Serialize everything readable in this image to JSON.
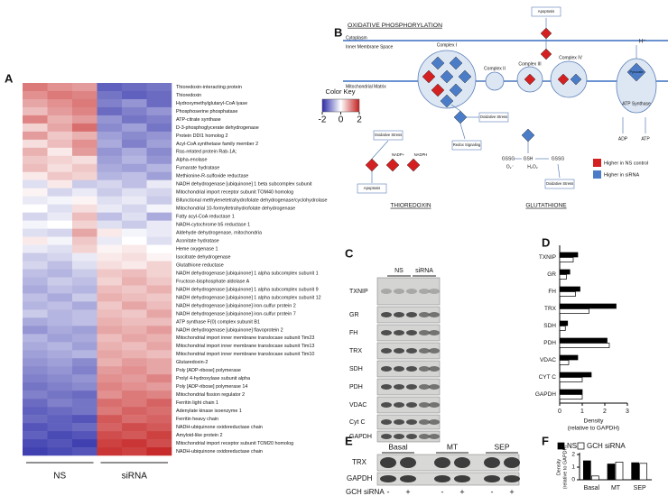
{
  "panel_labels": [
    "A",
    "B",
    "C",
    "D",
    "E",
    "F"
  ],
  "heatmap": {
    "title": "Color Key",
    "key_range": [
      -2,
      2
    ],
    "key_ticks": [
      -2,
      0,
      2
    ],
    "key_colors": [
      "#2b2ba8",
      "#ffffff",
      "#c42020"
    ],
    "groups": [
      "NS",
      "siRNA"
    ],
    "rows": [
      "Thioredoxin-interacting protein",
      "Thioredoxin",
      "Hydroxymethylglutaryl-CoA lyase",
      "Phosphoserine phosphatase",
      "ATP-citrate synthase",
      "D-3-phosphoglycerate dehydrogenase",
      "Protein DDI1 homolog 2",
      "Acyl-CoA synthetase family member 2",
      "Ras-related protein Rab-1A;",
      "Alpha-enolase",
      "Fumarate hydratase",
      "Methionine-R-sulfoxide reductase",
      "NADH dehydrogenase [ubiquinone] 1 beta subcomplex subunit",
      "Mitochondrial import receptor subunit TOM40 homolog",
      "Bifunctional methylenetetrahydrofolate dehydrogenase/cyclohydrolase",
      "Mitochondrial 10-formyltetrahydrofolate dehydrogenase",
      "Fatty acyl-CoA reductase 1",
      "NADH-cytochrome b5 reductase 1",
      "Aldehyde dehydrogenase, mitochondria",
      "Aconitate hydratase",
      "Heme oxygenase 1",
      "Isocitrate dehydrogenase",
      "Glutathione reductase",
      "NADH dehydrogenase [ubiquinone] 1 alpha subcomplex subunit 1",
      "Fructose-bisphosphate aldolase A",
      "NADH dehydrogenase [ubiquinone] 1 alpha subcomplex subunit 9",
      "NADH dehydrogenase [ubiquinone] 1 alpha subcomplex subunit 12",
      "NADH dehydrogenase [ubiquinone] iron-sulfur protein 2",
      "NADH dehydrogenase [ubiquinone] iron-sulfur protein 7",
      "ATP synthase F(0) complex subunit B1",
      "NADH dehydrogenase [ubiquinone] flavoprotein 2",
      "Mitochondrial import inner membrane translocase subunit Tim23",
      "Mitochondrial import inner membrane translocase subunit Tim13",
      "Mitochondrial import inner membrane translocase subunit Tim10",
      "Glutaredoxin-2",
      "Poly [ADP-ribose] polymerase",
      "Prolyl 4-hydroxylase subunit alpha",
      "Poly [ADP-ribose] polymerase 14",
      "Mitochondrial fission regulator 2",
      "Ferritin light chain 1",
      "Adenylate kinase isoenzyme 1",
      "Ferritin heavy chain",
      "NADH-ubiquinone oxidoreductase chain",
      "Amyloid-like protein 2",
      "Mitochondrial import receptor subunit TOM20 homolog",
      "NADH-ubiquinone oxidoreductase chain"
    ],
    "values": [
      [
        1.2,
        1.0,
        0.9,
        -1.5,
        -1.4,
        -1.3
      ],
      [
        1.0,
        1.2,
        1.1,
        -1.3,
        -1.5,
        -1.4
      ],
      [
        0.8,
        1.0,
        1.2,
        -1.2,
        -1.0,
        -1.4
      ],
      [
        0.6,
        0.9,
        1.1,
        -1.4,
        -1.2,
        -1.0
      ],
      [
        1.1,
        0.7,
        0.9,
        -1.0,
        -1.3,
        -1.2
      ],
      [
        0.4,
        0.8,
        1.3,
        -1.1,
        -0.9,
        -1.3
      ],
      [
        0.9,
        0.5,
        0.7,
        -0.9,
        -1.1,
        -1.0
      ],
      [
        0.3,
        0.6,
        1.0,
        -0.8,
        -1.2,
        -0.9
      ],
      [
        0.7,
        0.2,
        0.9,
        -1.0,
        -0.8,
        -1.1
      ],
      [
        0.5,
        0.4,
        0.3,
        -0.9,
        -0.7,
        -1.0
      ],
      [
        0.6,
        0.3,
        0.5,
        -0.8,
        -0.9,
        -0.7
      ],
      [
        0.2,
        0.5,
        0.4,
        -0.7,
        -0.6,
        -0.9
      ],
      [
        -0.3,
        0.2,
        -0.5,
        -0.4,
        -0.6,
        -0.2
      ],
      [
        0.1,
        -0.4,
        -0.2,
        -0.5,
        -0.3,
        -0.4
      ],
      [
        -0.2,
        -0.1,
        0.1,
        -0.3,
        -0.2,
        -0.5
      ],
      [
        0.0,
        -0.3,
        0.3,
        -0.2,
        -0.4,
        -0.1
      ],
      [
        -0.4,
        -0.2,
        0.6,
        -0.6,
        -0.3,
        -0.8
      ],
      [
        -0.1,
        0.0,
        0.4,
        -0.3,
        -0.5,
        -0.2
      ],
      [
        -0.3,
        -0.4,
        0.8,
        0.2,
        -0.1,
        -0.2
      ],
      [
        0.2,
        -0.1,
        0.5,
        -0.2,
        0.0,
        -0.3
      ],
      [
        -0.2,
        -0.3,
        0.4,
        0.1,
        0.2,
        0.0
      ],
      [
        -0.5,
        -0.4,
        -0.2,
        0.2,
        0.3,
        0.1
      ],
      [
        -0.4,
        -0.6,
        -0.3,
        0.3,
        0.2,
        0.4
      ],
      [
        -0.6,
        -0.7,
        -0.5,
        0.5,
        0.6,
        0.4
      ],
      [
        -0.7,
        -0.5,
        -0.6,
        0.4,
        0.7,
        0.5
      ],
      [
        -0.8,
        -0.6,
        -0.7,
        0.6,
        0.5,
        0.7
      ],
      [
        -0.6,
        -0.8,
        -0.5,
        0.7,
        0.6,
        0.5
      ],
      [
        -0.7,
        -0.6,
        -0.8,
        0.5,
        0.8,
        0.6
      ],
      [
        -0.5,
        -0.7,
        -0.6,
        0.6,
        0.5,
        0.8
      ],
      [
        -0.8,
        -0.7,
        -0.6,
        0.7,
        0.6,
        0.6
      ],
      [
        -1.0,
        -0.8,
        -0.9,
        0.8,
        0.7,
        0.9
      ],
      [
        -0.7,
        -0.9,
        -0.8,
        0.6,
        0.8,
        0.7
      ],
      [
        -0.8,
        -0.7,
        -0.9,
        0.7,
        0.6,
        0.8
      ],
      [
        -0.9,
        -0.8,
        -0.7,
        0.8,
        0.7,
        0.6
      ],
      [
        -1.0,
        -0.9,
        -1.1,
        0.7,
        0.9,
        0.8
      ],
      [
        -1.1,
        -1.0,
        -1.2,
        0.9,
        1.0,
        0.8
      ],
      [
        -1.2,
        -1.1,
        -1.0,
        1.0,
        0.9,
        1.1
      ],
      [
        -1.3,
        -1.2,
        -1.1,
        1.1,
        1.0,
        0.9
      ],
      [
        -1.2,
        -1.3,
        -1.4,
        1.0,
        1.2,
        1.1
      ],
      [
        -1.4,
        -1.2,
        -1.3,
        1.3,
        1.2,
        1.4
      ],
      [
        -1.5,
        -1.4,
        -1.3,
        1.2,
        1.4,
        1.3
      ],
      [
        -1.4,
        -1.5,
        -1.6,
        1.5,
        1.3,
        1.4
      ],
      [
        -1.6,
        -1.5,
        -1.4,
        1.4,
        1.6,
        1.5
      ],
      [
        -1.5,
        -1.7,
        -1.6,
        1.6,
        1.5,
        1.7
      ],
      [
        -1.7,
        -1.6,
        -1.8,
        1.7,
        1.8,
        1.6
      ],
      [
        -1.8,
        -1.7,
        -1.6,
        1.8,
        1.7,
        1.9
      ]
    ]
  },
  "pathway": {
    "title": "OXIDATIVE PHOSPHORYLATION",
    "cytoplasm": "Cytoplasm",
    "ims": "Inner Membrane Space",
    "matrix": "Mitochondrial Matrix",
    "complex_1": "Complex I",
    "complex_2": "Complex II",
    "complex_3": "Complex III",
    "complex_4": "Complex IV",
    "atp_synthase": "ATP Synthase",
    "pyruvate": "Pyruvate",
    "proton": "H⁺",
    "adp": "ADP",
    "atp": "ATP",
    "apoptosis_1": "Apoptosis",
    "oxidative_stress_1": "Oxidative Stress",
    "redox": "Redox Signaling",
    "oxidative_stress_2": "Oxidative Stress",
    "nadp": "NADP+",
    "nadph": "NADPH",
    "apoptosis_2": "Apoptosis",
    "thioredoxin": "THIOREDOXIN",
    "gssg_1": "GSSG",
    "gsh": "GSH",
    "gssg_2": "GSSG",
    "superoxide": "O₂⁻",
    "peroxide": "H₂O₂",
    "oxidative_stress_3": "Oxidative Stress",
    "glutathione": "GLUTATHIONE",
    "legend": [
      "Higher in NS control",
      "Higher in siRNA"
    ],
    "legend_colors": [
      "#d42020",
      "#4a7cc8"
    ]
  },
  "blot_c": {
    "lanes": [
      "NS",
      "siRNA"
    ],
    "rows": [
      "TXNIP",
      "GR",
      "FH",
      "TRX",
      "SDH",
      "PDH",
      "VDAC",
      "Cyt C",
      "GAPDH"
    ]
  },
  "blot_e": {
    "groups": [
      "Basal",
      "MT",
      "SEP"
    ],
    "rows": [
      "TRX",
      "GAPDH"
    ],
    "treatment": "GCH siRNA",
    "signs": [
      "-",
      "+",
      "-",
      "+",
      "-",
      "+"
    ]
  },
  "chart_data": [
    {
      "type": "hbar",
      "categories": [
        "TXNIP",
        "GR",
        "FH",
        "TRX",
        "SDH",
        "PDH",
        "VDAC",
        "CYT C",
        "GAPDH"
      ],
      "series": [
        {
          "color": "#000000",
          "values": [
            0.8,
            0.45,
            0.9,
            2.5,
            0.35,
            2.1,
            0.8,
            1.4,
            1.0
          ]
        },
        {
          "color": "#ffffff",
          "values": [
            0.6,
            0.3,
            0.7,
            1.3,
            0.25,
            2.2,
            0.4,
            1.0,
            1.0
          ]
        }
      ],
      "xlim": [
        0,
        3
      ],
      "xticks": [
        0,
        1,
        2,
        3
      ],
      "xlabel": [
        "Density",
        "(relative to GAPDH)"
      ]
    },
    {
      "type": "bar",
      "categories": [
        "Basal",
        "MT",
        "SEP"
      ],
      "series": [
        {
          "name": "NS",
          "color": "#000000",
          "values": [
            1.5,
            1.25,
            1.35
          ]
        },
        {
          "name": "GCH siRNA",
          "color": "#ffffff",
          "values": [
            0.3,
            1.4,
            1.3
          ]
        }
      ],
      "ylim": [
        0,
        2
      ],
      "yticks": [
        0,
        1,
        2
      ],
      "ylabel": [
        "Density",
        "(relative to GAPDH)"
      ]
    }
  ]
}
